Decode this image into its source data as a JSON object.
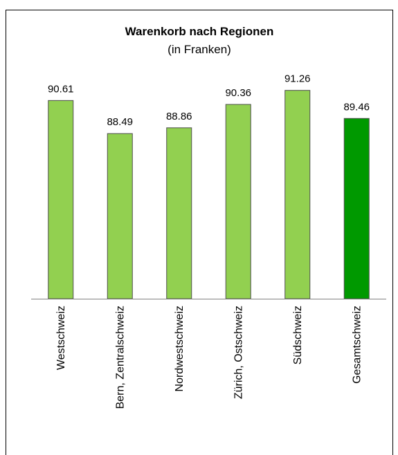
{
  "chart_data": {
    "type": "bar",
    "title": "Warenkorb nach Regionen",
    "subtitle": "(in Franken)",
    "categories": [
      "Westschweiz",
      "Bern, Zentralschweiz",
      "Nordwestschweiz",
      "Zürich, Ostschweiz",
      "Südschweiz",
      "Gesamtschweiz"
    ],
    "values": [
      90.61,
      88.49,
      88.86,
      90.36,
      91.26,
      89.46
    ],
    "colors": [
      "#92d050",
      "#92d050",
      "#92d050",
      "#92d050",
      "#92d050",
      "#009900"
    ],
    "ylim": [
      77.9,
      92
    ]
  }
}
